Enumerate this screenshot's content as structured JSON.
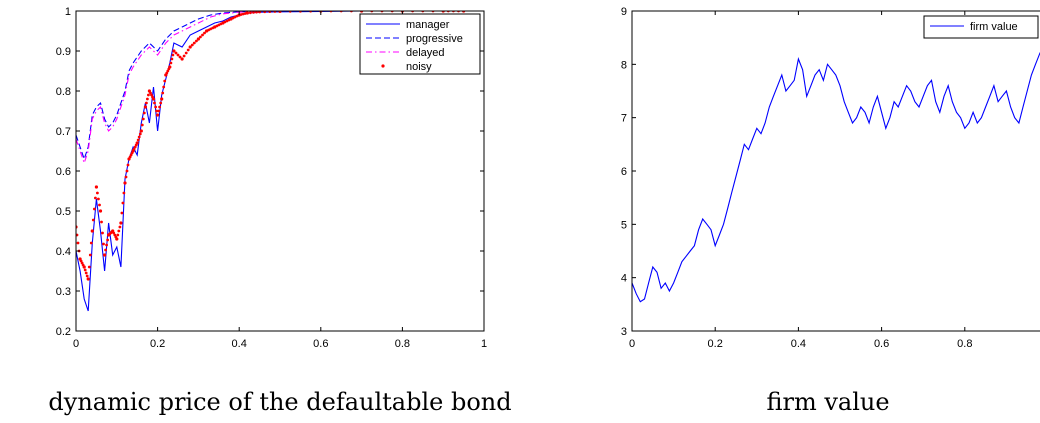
{
  "chart_data": [
    {
      "type": "line",
      "caption": "dynamic price of the defaultable bond",
      "xlim": [
        0,
        1
      ],
      "ylim": [
        0.2,
        1
      ],
      "xticks": [
        "0",
        "0.2",
        "0.4",
        "0.6",
        "0.8",
        "1"
      ],
      "yticks": [
        "0.2",
        "0.3",
        "0.4",
        "0.5",
        "0.6",
        "0.7",
        "0.8",
        "0.9",
        "1"
      ],
      "legend": "top-right",
      "grid": false,
      "series": [
        {
          "name": "manager",
          "style": "solid",
          "color": "#0000ff",
          "x": [
            0,
            0.01,
            0.02,
            0.03,
            0.04,
            0.05,
            0.06,
            0.07,
            0.08,
            0.09,
            0.1,
            0.11,
            0.12,
            0.13,
            0.14,
            0.15,
            0.16,
            0.17,
            0.18,
            0.19,
            0.2,
            0.21,
            0.22,
            0.23,
            0.24,
            0.26,
            0.28,
            0.3,
            0.32,
            0.34,
            0.36,
            0.38,
            0.4,
            0.42,
            0.45,
            0.5,
            0.6,
            0.7,
            0.8,
            0.9,
            0.95
          ],
          "y": [
            0.4,
            0.35,
            0.28,
            0.25,
            0.42,
            0.53,
            0.45,
            0.35,
            0.47,
            0.39,
            0.41,
            0.36,
            0.58,
            0.63,
            0.66,
            0.64,
            0.72,
            0.77,
            0.72,
            0.81,
            0.7,
            0.79,
            0.83,
            0.87,
            0.92,
            0.91,
            0.94,
            0.95,
            0.96,
            0.97,
            0.975,
            0.985,
            0.99,
            0.995,
            0.997,
            0.998,
            0.999,
            1.0,
            1.0,
            1.0,
            1.0
          ]
        },
        {
          "name": "progressive",
          "style": "dashed",
          "color": "#0000ff",
          "x": [
            0,
            0.01,
            0.02,
            0.03,
            0.04,
            0.05,
            0.06,
            0.07,
            0.08,
            0.09,
            0.1,
            0.11,
            0.12,
            0.13,
            0.14,
            0.16,
            0.18,
            0.2,
            0.22,
            0.24,
            0.26,
            0.28,
            0.3,
            0.33,
            0.36,
            0.4,
            0.45,
            0.5,
            0.6,
            0.7,
            0.8,
            0.9,
            0.95
          ],
          "y": [
            0.69,
            0.66,
            0.63,
            0.66,
            0.74,
            0.76,
            0.77,
            0.73,
            0.71,
            0.72,
            0.74,
            0.77,
            0.8,
            0.85,
            0.87,
            0.9,
            0.92,
            0.9,
            0.93,
            0.95,
            0.96,
            0.97,
            0.98,
            0.99,
            0.995,
            0.998,
            1.0,
            1.0,
            1.0,
            1.0,
            1.0,
            1.0,
            1.0
          ]
        },
        {
          "name": "delayed",
          "style": "dashdot",
          "color": "#ff00ff",
          "x": [
            0,
            0.01,
            0.02,
            0.03,
            0.04,
            0.05,
            0.06,
            0.07,
            0.08,
            0.09,
            0.1,
            0.11,
            0.12,
            0.13,
            0.14,
            0.16,
            0.18,
            0.2,
            0.22,
            0.24,
            0.26,
            0.28,
            0.3,
            0.33,
            0.36,
            0.4,
            0.45,
            0.5,
            0.6,
            0.7,
            0.8,
            0.9,
            0.95
          ],
          "y": [
            0.68,
            0.65,
            0.62,
            0.65,
            0.73,
            0.75,
            0.76,
            0.72,
            0.7,
            0.71,
            0.73,
            0.76,
            0.79,
            0.84,
            0.86,
            0.89,
            0.91,
            0.89,
            0.92,
            0.94,
            0.95,
            0.96,
            0.97,
            0.985,
            0.993,
            0.997,
            0.999,
            1.0,
            1.0,
            1.0,
            1.0,
            1.0,
            1.0
          ]
        },
        {
          "name": "noisy",
          "style": "dots",
          "color": "#ff0000",
          "x": [
            0,
            0.01,
            0.02,
            0.03,
            0.04,
            0.05,
            0.06,
            0.07,
            0.08,
            0.09,
            0.1,
            0.11,
            0.12,
            0.13,
            0.14,
            0.15,
            0.16,
            0.17,
            0.18,
            0.19,
            0.2,
            0.21,
            0.22,
            0.23,
            0.24,
            0.26,
            0.28,
            0.3,
            0.32,
            0.34,
            0.36,
            0.38,
            0.4,
            0.42,
            0.45,
            0.5,
            0.6,
            0.7,
            0.8,
            0.9,
            0.95
          ],
          "y": [
            0.46,
            0.38,
            0.36,
            0.33,
            0.45,
            0.56,
            0.5,
            0.39,
            0.44,
            0.45,
            0.43,
            0.47,
            0.57,
            0.63,
            0.65,
            0.67,
            0.7,
            0.76,
            0.8,
            0.78,
            0.74,
            0.78,
            0.84,
            0.86,
            0.9,
            0.88,
            0.91,
            0.93,
            0.95,
            0.96,
            0.97,
            0.98,
            0.99,
            0.995,
            0.998,
            0.999,
            1.0,
            1.0,
            1.0,
            1.0,
            1.0
          ]
        }
      ]
    },
    {
      "type": "line",
      "caption": "firm value",
      "xlim": [
        0,
        1
      ],
      "ylim": [
        3,
        9
      ],
      "xticks": [
        "0",
        "0.2",
        "0.4",
        "0.6",
        "0.8"
      ],
      "yticks": [
        "3",
        "4",
        "5",
        "6",
        "7",
        "8",
        "9"
      ],
      "legend": "top-right",
      "grid": false,
      "series": [
        {
          "name": "firm value",
          "style": "solid",
          "color": "#0000ff",
          "x": [
            0,
            0.01,
            0.02,
            0.03,
            0.04,
            0.05,
            0.06,
            0.07,
            0.08,
            0.09,
            0.1,
            0.11,
            0.12,
            0.13,
            0.14,
            0.15,
            0.16,
            0.17,
            0.18,
            0.19,
            0.2,
            0.21,
            0.22,
            0.23,
            0.24,
            0.25,
            0.26,
            0.27,
            0.28,
            0.29,
            0.3,
            0.31,
            0.32,
            0.33,
            0.34,
            0.35,
            0.36,
            0.37,
            0.38,
            0.39,
            0.4,
            0.41,
            0.42,
            0.43,
            0.44,
            0.45,
            0.46,
            0.47,
            0.48,
            0.49,
            0.5,
            0.51,
            0.52,
            0.53,
            0.54,
            0.55,
            0.56,
            0.57,
            0.58,
            0.59,
            0.6,
            0.61,
            0.62,
            0.63,
            0.64,
            0.65,
            0.66,
            0.67,
            0.68,
            0.69,
            0.7,
            0.71,
            0.72,
            0.73,
            0.74,
            0.75,
            0.76,
            0.77,
            0.78,
            0.79,
            0.8,
            0.81,
            0.82,
            0.83,
            0.84,
            0.85,
            0.86,
            0.87,
            0.88,
            0.89,
            0.9,
            0.91,
            0.92,
            0.93,
            0.94,
            0.95,
            0.96,
            0.97,
            0.98,
            0.99,
            1.0
          ],
          "y": [
            3.9,
            3.7,
            3.55,
            3.6,
            3.9,
            4.2,
            4.1,
            3.8,
            3.9,
            3.75,
            3.9,
            4.1,
            4.3,
            4.4,
            4.5,
            4.6,
            4.9,
            5.1,
            5.0,
            4.9,
            4.6,
            4.8,
            5.0,
            5.3,
            5.6,
            5.9,
            6.2,
            6.5,
            6.4,
            6.6,
            6.8,
            6.7,
            6.9,
            7.2,
            7.4,
            7.6,
            7.8,
            7.5,
            7.6,
            7.7,
            8.1,
            7.9,
            7.4,
            7.6,
            7.8,
            7.9,
            7.7,
            8.0,
            7.9,
            7.8,
            7.6,
            7.3,
            7.1,
            6.9,
            7.0,
            7.2,
            7.1,
            6.9,
            7.2,
            7.4,
            7.1,
            6.8,
            7.0,
            7.3,
            7.2,
            7.4,
            7.6,
            7.5,
            7.3,
            7.2,
            7.4,
            7.6,
            7.7,
            7.3,
            7.1,
            7.4,
            7.6,
            7.3,
            7.1,
            7.0,
            6.8,
            6.9,
            7.1,
            6.9,
            7.0,
            7.2,
            7.4,
            7.6,
            7.3,
            7.4,
            7.5,
            7.2,
            7.0,
            6.9,
            7.2,
            7.5,
            7.8,
            8.0,
            8.2,
            8.35,
            8.2
          ]
        },
        {
          "name": "",
          "style": "solid",
          "color": "#aa0000",
          "x": [
            0,
            1.0
          ],
          "y": [
            3,
            3
          ]
        }
      ]
    }
  ]
}
